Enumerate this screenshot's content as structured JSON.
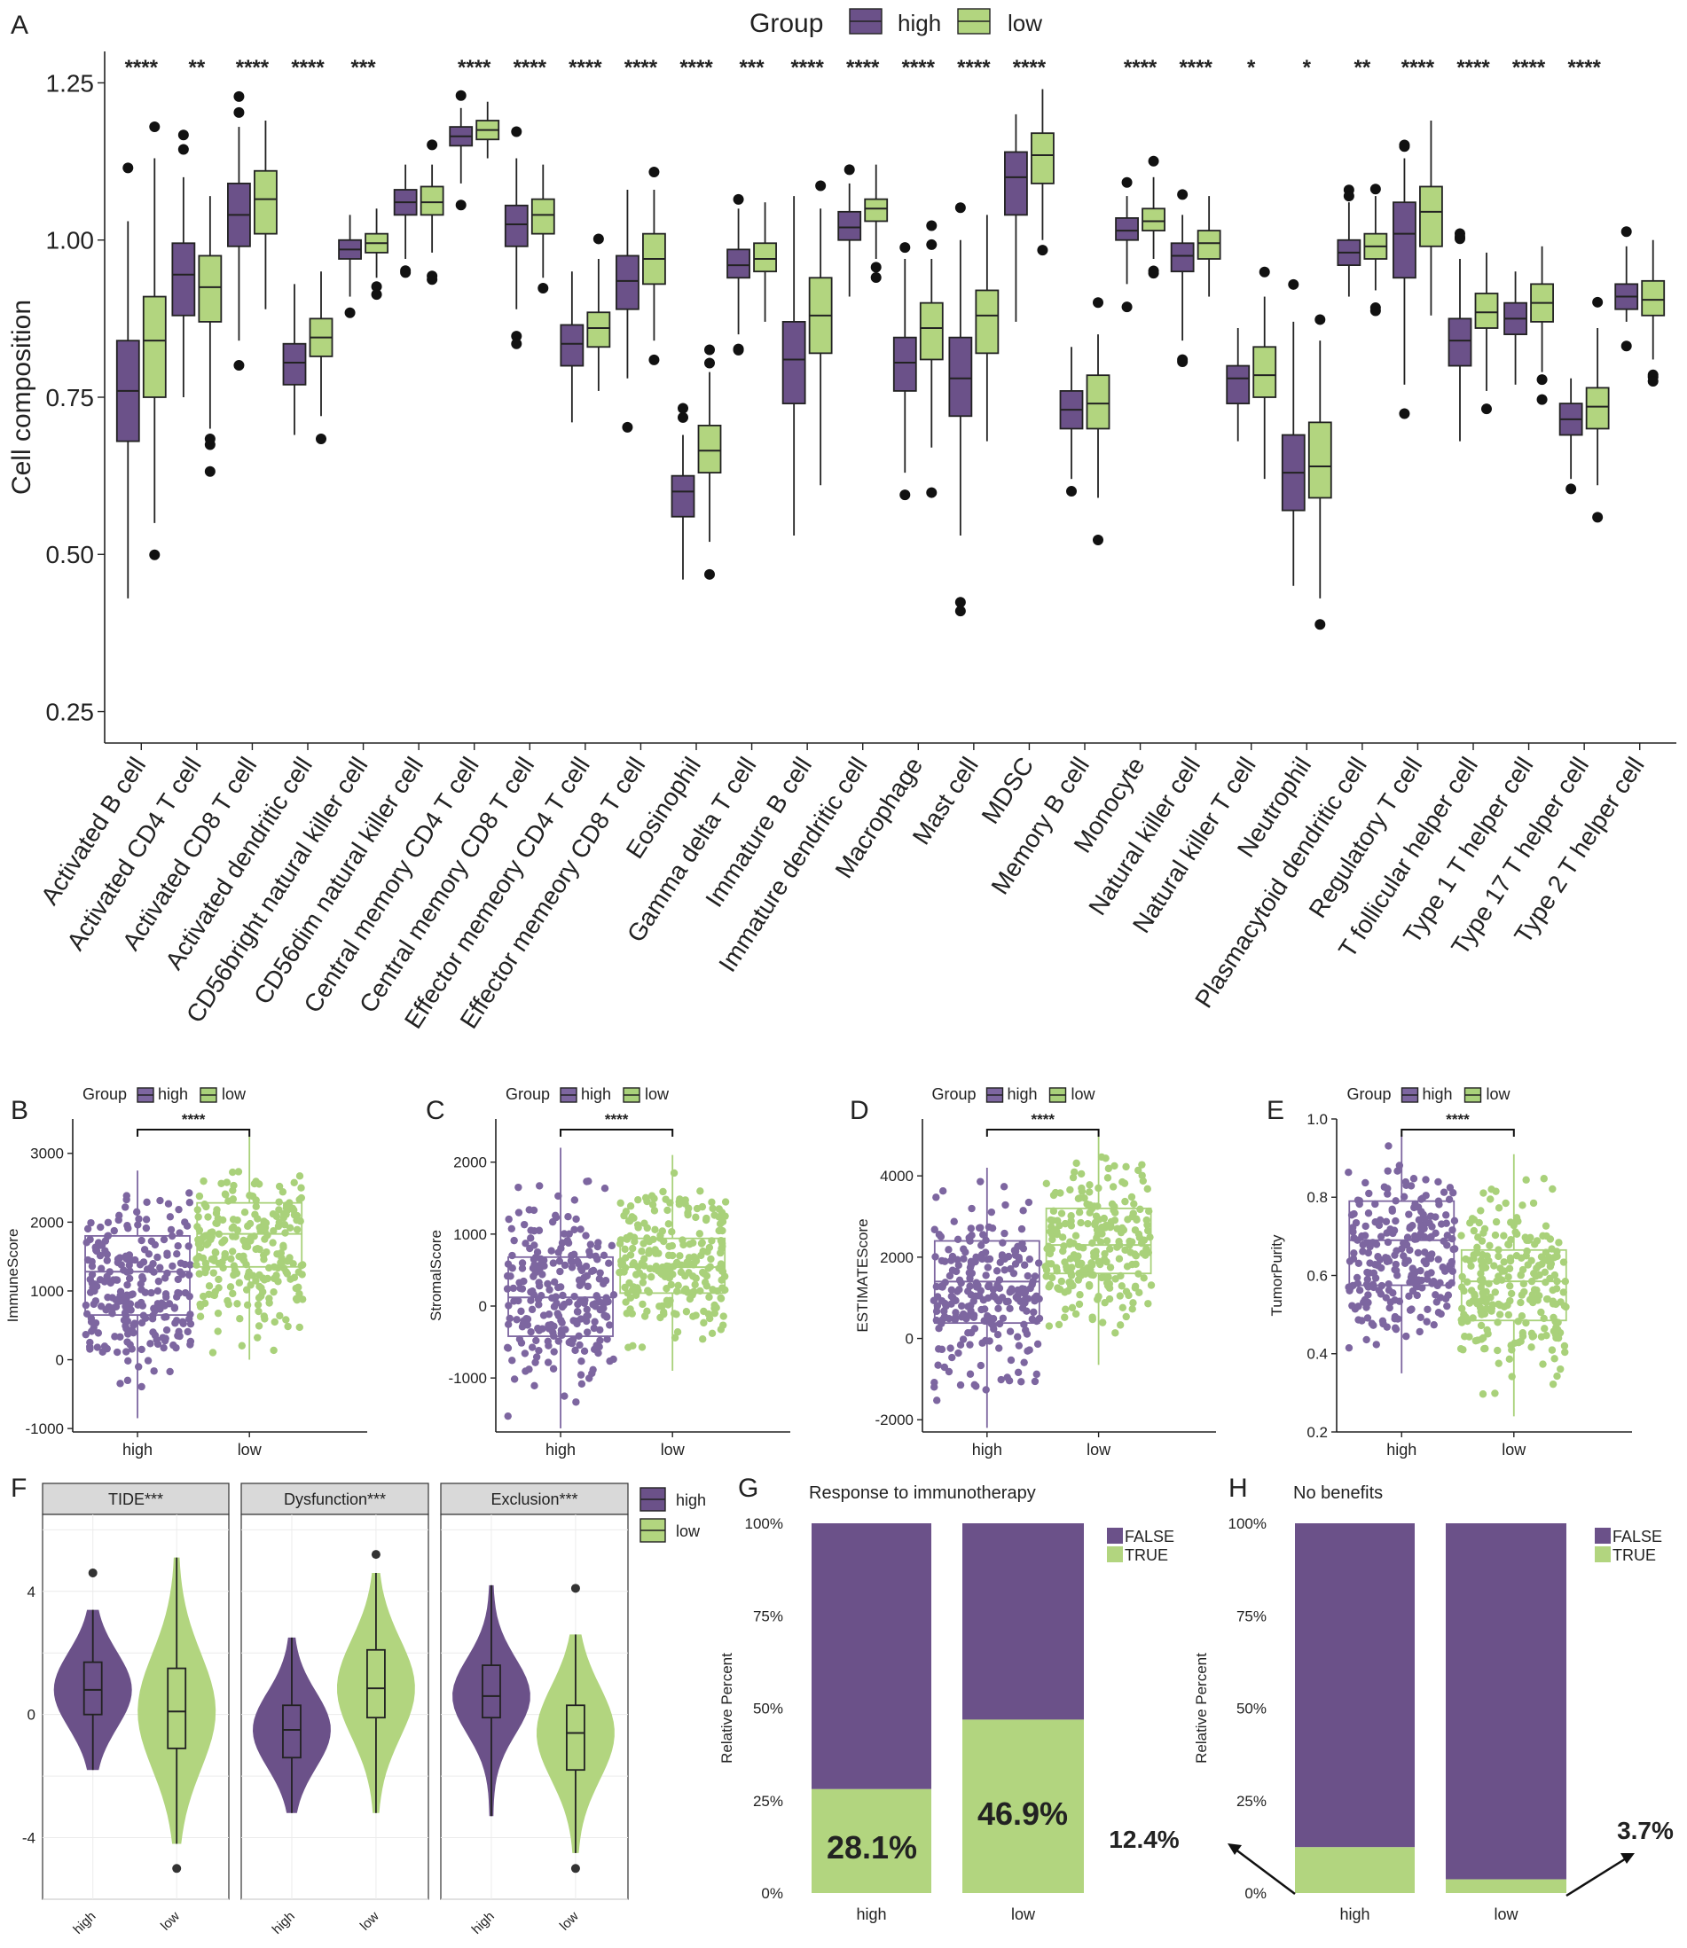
{
  "colors": {
    "high": "#6b5189",
    "high_light": "#7d66a0",
    "low": "#b2d57f",
    "low_light": "#a9d17a",
    "outline": "#222222",
    "facet": "#d9d9d9",
    "grid": "#ececec"
  },
  "chart_data": [
    {
      "id": "A",
      "panel_label": "A",
      "type": "box",
      "legend": {
        "title": "Group",
        "items": [
          "high",
          "low"
        ]
      },
      "ylabel": "Cell composition",
      "ylim": [
        0.2,
        1.3
      ],
      "yticks": [
        0.25,
        0.5,
        0.75,
        1.0,
        1.25
      ],
      "ytick_labels": [
        "0.25",
        "0.50",
        "0.75",
        "1.00",
        "1.25"
      ],
      "categories": [
        "Activated B cell",
        "Activated CD4 T cell",
        "Activated CD8 T cell",
        "Activated dendritic cell",
        "CD56bright natural killer cell",
        "CD56dim natural killer cell",
        "Central memory CD4 T cell",
        "Central memory CD8 T cell",
        "Effector memeory CD4 T cell",
        "Effector memeory CD8 T cell",
        "Eosinophil",
        "Gamma delta T cell",
        "Immature  B cell",
        "Immature dendritic cell",
        "Macrophage",
        "Mast cell",
        "MDSC",
        "Memory B cell",
        "Monocyte",
        "Natural killer cell",
        "Natural killer T cell",
        "Neutrophil",
        "Plasmacytoid dendritic cell",
        "Regulatory T cell",
        "T follicular helper cell",
        "Type 1 T helper cell",
        "Type 17 T helper cell",
        "Type 2 T helper cell"
      ],
      "significance": [
        "****",
        "**",
        "****",
        "****",
        "***",
        "",
        "****",
        "****",
        "****",
        "****",
        "****",
        "***",
        "****",
        "****",
        "****",
        "****",
        "****",
        "",
        "****",
        "****",
        "*",
        "*",
        "**",
        "****",
        "****",
        "****",
        "****",
        ""
      ],
      "series": [
        {
          "name": "high",
          "boxes": [
            [
              0.43,
              0.68,
              0.76,
              0.84,
              1.03
            ],
            [
              0.75,
              0.88,
              0.945,
              0.995,
              1.1
            ],
            [
              0.84,
              0.99,
              1.04,
              1.09,
              1.18
            ],
            [
              0.69,
              0.77,
              0.805,
              0.835,
              0.93
            ],
            [
              0.91,
              0.97,
              0.985,
              1.0,
              1.04
            ],
            [
              0.97,
              1.04,
              1.06,
              1.08,
              1.12
            ],
            [
              1.09,
              1.15,
              1.165,
              1.18,
              1.21
            ],
            [
              0.89,
              0.99,
              1.025,
              1.055,
              1.13
            ],
            [
              0.71,
              0.8,
              0.835,
              0.865,
              0.95
            ],
            [
              0.78,
              0.89,
              0.935,
              0.975,
              1.08
            ],
            [
              0.46,
              0.56,
              0.6,
              0.625,
              0.69
            ],
            [
              0.85,
              0.94,
              0.96,
              0.985,
              1.05
            ],
            [
              0.53,
              0.74,
              0.81,
              0.87,
              1.07
            ],
            [
              0.91,
              1.0,
              1.02,
              1.045,
              1.09
            ],
            [
              0.63,
              0.76,
              0.805,
              0.845,
              0.97
            ],
            [
              0.53,
              0.72,
              0.78,
              0.845,
              1.0
            ],
            [
              0.87,
              1.04,
              1.1,
              1.14,
              1.2
            ],
            [
              0.62,
              0.7,
              0.73,
              0.76,
              0.83
            ],
            [
              0.93,
              1.0,
              1.015,
              1.035,
              1.07
            ],
            [
              0.84,
              0.95,
              0.975,
              0.995,
              1.04
            ],
            [
              0.68,
              0.74,
              0.78,
              0.8,
              0.86
            ],
            [
              0.45,
              0.57,
              0.63,
              0.69,
              0.87
            ],
            [
              0.91,
              0.96,
              0.98,
              1.0,
              1.06
            ],
            [
              0.77,
              0.94,
              1.01,
              1.06,
              1.13
            ],
            [
              0.68,
              0.8,
              0.84,
              0.875,
              0.97
            ],
            [
              0.77,
              0.85,
              0.875,
              0.9,
              0.95
            ],
            [
              0.62,
              0.69,
              0.715,
              0.74,
              0.78
            ],
            [
              0.87,
              0.89,
              0.91,
              0.93,
              0.99
            ]
          ]
        },
        {
          "name": "low",
          "boxes": [
            [
              0.55,
              0.75,
              0.84,
              0.91,
              1.13
            ],
            [
              0.7,
              0.87,
              0.925,
              0.975,
              1.07
            ],
            [
              0.89,
              1.01,
              1.065,
              1.11,
              1.19
            ],
            [
              0.72,
              0.815,
              0.845,
              0.875,
              0.95
            ],
            [
              0.94,
              0.98,
              0.995,
              1.01,
              1.05
            ],
            [
              0.98,
              1.04,
              1.06,
              1.085,
              1.12
            ],
            [
              1.13,
              1.16,
              1.175,
              1.19,
              1.22
            ],
            [
              0.94,
              1.01,
              1.04,
              1.065,
              1.12
            ],
            [
              0.76,
              0.83,
              0.86,
              0.885,
              0.97
            ],
            [
              0.84,
              0.93,
              0.97,
              1.01,
              1.08
            ],
            [
              0.52,
              0.63,
              0.665,
              0.705,
              0.79
            ],
            [
              0.87,
              0.95,
              0.97,
              0.995,
              1.06
            ],
            [
              0.61,
              0.82,
              0.88,
              0.94,
              1.05
            ],
            [
              0.97,
              1.03,
              1.05,
              1.065,
              1.12
            ],
            [
              0.67,
              0.81,
              0.86,
              0.9,
              0.97
            ],
            [
              0.68,
              0.82,
              0.88,
              0.92,
              1.04
            ],
            [
              1.0,
              1.09,
              1.135,
              1.17,
              1.24
            ],
            [
              0.59,
              0.7,
              0.74,
              0.785,
              0.85
            ],
            [
              0.97,
              1.015,
              1.03,
              1.05,
              1.1
            ],
            [
              0.91,
              0.97,
              0.995,
              1.015,
              1.07
            ],
            [
              0.62,
              0.75,
              0.785,
              0.83,
              0.91
            ],
            [
              0.43,
              0.59,
              0.64,
              0.71,
              0.84
            ],
            [
              0.92,
              0.97,
              0.99,
              1.01,
              1.07
            ],
            [
              0.88,
              0.99,
              1.045,
              1.085,
              1.19
            ],
            [
              0.76,
              0.86,
              0.885,
              0.915,
              0.98
            ],
            [
              0.79,
              0.87,
              0.9,
              0.93,
              0.99
            ],
            [
              0.61,
              0.7,
              0.735,
              0.765,
              0.86
            ],
            [
              0.81,
              0.88,
              0.905,
              0.935,
              1.0
            ]
          ]
        }
      ]
    },
    {
      "id": "B",
      "panel_label": "B",
      "type": "box-jitter",
      "legend": {
        "title": "Group",
        "items": [
          "high",
          "low"
        ]
      },
      "ylabel": "ImmuneScore",
      "ylim": [
        -1050,
        3500
      ],
      "yticks": [
        -1000,
        0,
        1000,
        2000,
        3000
      ],
      "ytick_labels": [
        "-1000",
        "0",
        "1000",
        "2000",
        "3000"
      ],
      "categories": [
        "high",
        "low"
      ],
      "significance": "****",
      "boxes": [
        [
          -850,
          650,
          1280,
          1800,
          2750
        ],
        [
          0,
          1350,
          1830,
          2280,
          3250
        ]
      ]
    },
    {
      "id": "C",
      "panel_label": "C",
      "type": "box-jitter",
      "legend": {
        "title": "Group",
        "items": [
          "high",
          "low"
        ]
      },
      "ylabel": "StromalScore",
      "ylim": [
        -1750,
        2600
      ],
      "yticks": [
        -1000,
        0,
        1000,
        2000
      ],
      "ytick_labels": [
        "-1000",
        "0",
        "1000",
        "2000"
      ],
      "categories": [
        "high",
        "low"
      ],
      "significance": "****",
      "boxes": [
        [
          -1700,
          -420,
          120,
          680,
          2200
        ],
        [
          -900,
          180,
          540,
          940,
          2100
        ]
      ]
    },
    {
      "id": "D",
      "panel_label": "D",
      "type": "box-jitter",
      "legend": {
        "title": "Group",
        "items": [
          "high",
          "low"
        ]
      },
      "ylabel": "ESTIMATEScore",
      "ylim": [
        -2300,
        5400
      ],
      "yticks": [
        -2000,
        0,
        2000,
        4000
      ],
      "ytick_labels": [
        "-2000",
        "0",
        "2000",
        "4000"
      ],
      "categories": [
        "high",
        "low"
      ],
      "significance": "****",
      "boxes": [
        [
          -2200,
          380,
          1400,
          2400,
          4200
        ],
        [
          -650,
          1600,
          2300,
          3200,
          5000
        ]
      ]
    },
    {
      "id": "E",
      "panel_label": "E",
      "type": "box-jitter",
      "legend": {
        "title": "Group",
        "items": [
          "high",
          "low"
        ]
      },
      "ylabel": "TumorPurity",
      "ylim": [
        0.2,
        1.0
      ],
      "yticks": [
        0.2,
        0.4,
        0.6,
        0.8,
        1.0
      ],
      "ytick_labels": [
        "0.2",
        "0.4",
        "0.6",
        "0.8",
        "1.0"
      ],
      "categories": [
        "high",
        "low"
      ],
      "significance": "****",
      "boxes": [
        [
          0.35,
          0.575,
          0.69,
          0.79,
          0.96
        ],
        [
          0.24,
          0.485,
          0.585,
          0.665,
          0.91
        ]
      ]
    },
    {
      "id": "F",
      "panel_label": "F",
      "type": "violin",
      "legend": {
        "items": [
          "high",
          "low"
        ]
      },
      "ylim": [
        -6,
        6.5
      ],
      "yticks": [
        -4,
        0,
        4
      ],
      "ytick_labels": [
        "-4",
        "0",
        "4"
      ],
      "categories": [
        "high",
        "low"
      ],
      "facets": [
        {
          "title": "TIDE***",
          "boxes": [
            [
              -1.8,
              0,
              0.8,
              1.7,
              3.4
            ],
            [
              -4.2,
              -1.1,
              0.1,
              1.5,
              5.1
            ]
          ],
          "outliers": [
            [
              4.6
            ],
            [
              -5.0
            ]
          ]
        },
        {
          "title": "Dysfunction***",
          "boxes": [
            [
              -3.2,
              -1.4,
              -0.5,
              0.3,
              2.5
            ],
            [
              -3.2,
              -0.1,
              0.85,
              2.1,
              4.6
            ]
          ],
          "outliers": [
            [],
            [
              5.2
            ]
          ]
        },
        {
          "title": "Exclusion***",
          "boxes": [
            [
              -3.3,
              -0.1,
              0.6,
              1.6,
              4.2
            ],
            [
              -4.5,
              -1.8,
              -0.6,
              0.3,
              2.6
            ]
          ],
          "outliers": [
            [],
            [
              4.1,
              -5.0
            ]
          ]
        }
      ]
    },
    {
      "id": "G",
      "panel_label": "G",
      "type": "stacked-bar",
      "title": "Response to immunotherapy",
      "ylabel": "Relative Percent",
      "yticks": [
        0,
        25,
        50,
        75,
        100
      ],
      "ytick_labels": [
        "0%",
        "25%",
        "50%",
        "75%",
        "100%"
      ],
      "categories": [
        "high",
        "low"
      ],
      "legend": [
        "FALSE",
        "TRUE"
      ],
      "series": [
        {
          "name": "TRUE",
          "values": [
            28.1,
            46.9
          ]
        },
        {
          "name": "FALSE",
          "values": [
            71.9,
            53.1
          ]
        }
      ],
      "annotations": [
        "28.1%",
        "46.9%"
      ]
    },
    {
      "id": "H",
      "panel_label": "H",
      "type": "stacked-bar",
      "title": "No benefits",
      "ylabel": "Relative Percent",
      "yticks": [
        0,
        25,
        50,
        75,
        100
      ],
      "ytick_labels": [
        "0%",
        "25%",
        "50%",
        "75%",
        "100%"
      ],
      "categories": [
        "high",
        "low"
      ],
      "legend": [
        "FALSE",
        "TRUE"
      ],
      "series": [
        {
          "name": "TRUE",
          "values": [
            12.4,
            3.7
          ]
        },
        {
          "name": "FALSE",
          "values": [
            87.6,
            96.3
          ]
        }
      ],
      "annotations": [
        "12.4%",
        "3.7%"
      ]
    }
  ]
}
